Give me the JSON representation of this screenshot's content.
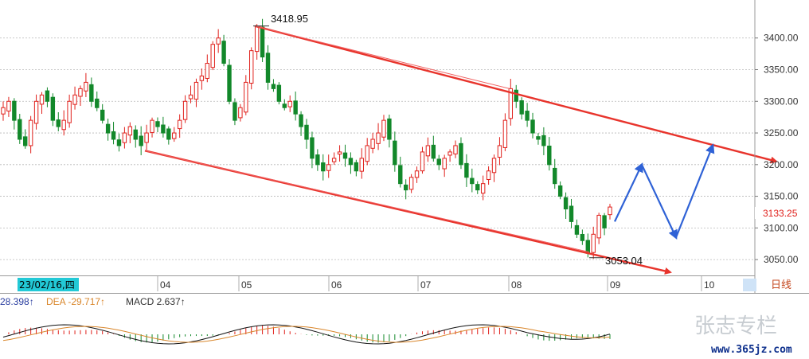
{
  "chart_data": {
    "type": "candlestick",
    "period_label": "日线",
    "cursor_date": "23/02/16,四",
    "y_ticks": [
      3050,
      3100,
      3150,
      3200,
      3250,
      3300,
      3350,
      3400
    ],
    "y_tick_labels": [
      "3050.00",
      "3100.00",
      "3150.00",
      "3200.00",
      "3250.00",
      "3300.00",
      "3350.00",
      "3400.00"
    ],
    "ylim": [
      3025,
      3455
    ],
    "x_month_labels": [
      "04",
      "05",
      "06",
      "07",
      "08",
      "09",
      "10"
    ],
    "high_annotation": "3418.95",
    "low_annotation": "3053.04",
    "last_price": "3133.25",
    "high_value": 3418.95,
    "low_value": 3053.04,
    "candles_close_trace": [
      3290,
      3300,
      3270,
      3240,
      3230,
      3270,
      3300,
      3310,
      3300,
      3270,
      3260,
      3270,
      3300,
      3310,
      3320,
      3330,
      3300,
      3290,
      3270,
      3250,
      3240,
      3230,
      3250,
      3260,
      3240,
      3230,
      3250,
      3270,
      3260,
      3250,
      3240,
      3250,
      3270,
      3300,
      3310,
      3330,
      3340,
      3360,
      3390,
      3400,
      3360,
      3300,
      3270,
      3290,
      3330,
      3380,
      3418,
      3370,
      3330,
      3320,
      3300,
      3290,
      3300,
      3280,
      3260,
      3240,
      3210,
      3200,
      3190,
      3200,
      3210,
      3220,
      3210,
      3200,
      3190,
      3210,
      3230,
      3240,
      3250,
      3270,
      3240,
      3200,
      3170,
      3160,
      3180,
      3190,
      3220,
      3230,
      3210,
      3200,
      3210,
      3220,
      3230,
      3200,
      3180,
      3170,
      3160,
      3170,
      3190,
      3210,
      3230,
      3270,
      3320,
      3300,
      3280,
      3270,
      3250,
      3240,
      3230,
      3200,
      3170,
      3150,
      3130,
      3110,
      3090,
      3080,
      3060,
      3090,
      3120,
      3100,
      3133
    ],
    "channel_upper": {
      "from": 3418.95,
      "to_label": "arrow"
    },
    "channel_lower": {
      "from": 3220,
      "to_label": "arrow"
    },
    "forecast_path": [
      3110,
      3200,
      3085,
      3230
    ],
    "macd": {
      "dif_label": "28.398↑",
      "dea_label": "DEA -29.717↑",
      "macd_label": "MACD 2.637↑"
    },
    "colors": {
      "up": "#e0201b",
      "down": "#12882a",
      "channel": "#e8342c",
      "forecast": "#2f62d6",
      "dif": "#111111",
      "dea": "#d9862b",
      "date_box": "#22c9d6"
    }
  },
  "watermark": {
    "brand": "张志专栏",
    "site": "www.365jz.com"
  }
}
